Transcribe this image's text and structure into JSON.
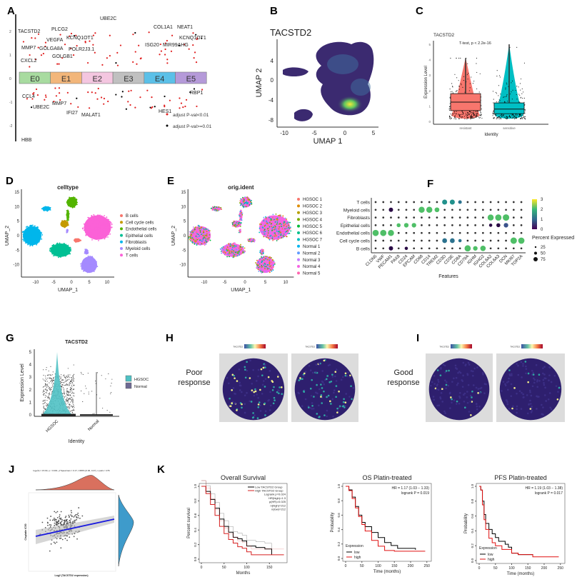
{
  "panel_labels": [
    "A",
    "B",
    "C",
    "D",
    "E",
    "F",
    "G",
    "H",
    "I",
    "J",
    "K"
  ],
  "chart_data": [
    {
      "id": "A",
      "type": "scatter",
      "clusters": [
        "E0",
        "E1",
        "E2",
        "E3",
        "E4",
        "E5"
      ],
      "cluster_colors": [
        "#a8dba0",
        "#f2b67a",
        "#f4c6e0",
        "#c0c0c0",
        "#5bc0e8",
        "#b59ad9"
      ],
      "ylim": [
        -2.6,
        2.6
      ],
      "yticks": [
        "2",
        "1",
        "0",
        "-1",
        "-2"
      ],
      "labeled_genes": [
        {
          "gene": "TACSTD2",
          "cluster": "E0",
          "value": 1.8
        },
        {
          "gene": "PLCG2",
          "cluster": "E1",
          "value": 1.9
        },
        {
          "gene": "UBE2C",
          "cluster": "E2",
          "value": 2.4
        },
        {
          "gene": "COL1A1",
          "cluster": "E4",
          "value": 2.0
        },
        {
          "gene": "NEAT1",
          "cluster": "E5",
          "value": 2.0
        },
        {
          "gene": "VEGFA",
          "cluster": "E1",
          "value": 1.5
        },
        {
          "gene": "KCNQ1OT1",
          "cluster": "E2",
          "value": 1.6
        },
        {
          "gene": "KCNQ1OT1",
          "cluster": "E5",
          "value": 1.6
        },
        {
          "gene": "MMP7",
          "cluster": "E0",
          "value": 1.1
        },
        {
          "gene": "GOLGA8A",
          "cluster": "E1",
          "value": 1.2
        },
        {
          "gene": "POLR2J3.1",
          "cluster": "E2",
          "value": 1.2
        },
        {
          "gene": "ISG20",
          "cluster": "E4",
          "value": 1.4
        },
        {
          "gene": "MIR99AHG",
          "cluster": "E5",
          "value": 1.3
        },
        {
          "gene": "GOLGB1",
          "cluster": "E1",
          "value": 0.9
        },
        {
          "gene": "CXCL2",
          "cluster": "E0",
          "value": 0.7
        },
        {
          "gene": "CCL4",
          "cluster": "E0",
          "value": -0.8
        },
        {
          "gene": "UBE2C",
          "cluster": "E0",
          "value": -1.1
        },
        {
          "gene": "MMP7",
          "cluster": "E1",
          "value": -1.1
        },
        {
          "gene": "IFI27",
          "cluster": "E1",
          "value": -1.4
        },
        {
          "gene": "MALAT1",
          "cluster": "E2",
          "value": -1.4
        },
        {
          "gene": "HES1",
          "cluster": "E4",
          "value": -1.5
        },
        {
          "gene": "RBP1",
          "cluster": "E5",
          "value": -0.7
        },
        {
          "gene": "HBB",
          "cluster": "E0",
          "value": -2.5
        }
      ],
      "legend": [
        {
          "label": "adjust P-val<0.01",
          "color": "#e02020"
        },
        {
          "label": "adjust P-val>=0.01",
          "color": "#000000"
        }
      ]
    },
    {
      "id": "B",
      "type": "heatmap",
      "title": "TACSTD2",
      "xlabel": "UMAP 1",
      "ylabel": "UMAP 2",
      "xticks": [
        "-10",
        "-5",
        "0",
        "5"
      ],
      "yticks": [
        "4",
        "0",
        "-4",
        "-8"
      ]
    },
    {
      "id": "C",
      "type": "box",
      "title": "TACSTD2",
      "annotation": "T-test, p < 2.2e-16",
      "xlabel": "Identity",
      "ylabel": "Expression Level",
      "categories": [
        "resistant",
        "sensitive"
      ],
      "colors": [
        "#f8766d",
        "#00bfc4"
      ],
      "boxes": [
        {
          "q1": 0.7,
          "median": 1.25,
          "q3": 1.8,
          "max": 4.1
        },
        {
          "q1": 0.5,
          "median": 0.8,
          "q3": 1.2,
          "max": 5.0
        }
      ],
      "ylim": [
        0,
        5
      ],
      "yticks": [
        "0",
        "1",
        "2",
        "3",
        "4",
        "5"
      ]
    },
    {
      "id": "D",
      "type": "scatter",
      "title": "celltype",
      "xlabel": "UMAP_1",
      "ylabel": "UMAP_2",
      "xticks": [
        "-10",
        "-5",
        "0",
        "5",
        "10"
      ],
      "yticks": [
        "15",
        "10",
        "5",
        "0",
        "-5",
        "-10"
      ],
      "legend": [
        {
          "label": "B cells",
          "color": "#f8766d"
        },
        {
          "label": "Cell cycle cells",
          "color": "#c49a00"
        },
        {
          "label": "Endothelial cells",
          "color": "#53b400"
        },
        {
          "label": "Epithelial cells",
          "color": "#00c094"
        },
        {
          "label": "Fibroblasts",
          "color": "#00b6eb"
        },
        {
          "label": "Myeloid cells",
          "color": "#a58aff"
        },
        {
          "label": "T cells",
          "color": "#fb61d7"
        }
      ]
    },
    {
      "id": "E",
      "type": "scatter",
      "title": "orig.ident",
      "xlabel": "UMAP_1",
      "ylabel": "UMAP_2",
      "xticks": [
        "-10",
        "-5",
        "0",
        "5",
        "10"
      ],
      "yticks": [
        "15",
        "10",
        "5",
        "0",
        "-5",
        "-10"
      ],
      "legend": [
        {
          "label": "HGSOC 1",
          "color": "#f8766d"
        },
        {
          "label": "HGSOC 2",
          "color": "#de8c00"
        },
        {
          "label": "HGSOC 3",
          "color": "#b79f00"
        },
        {
          "label": "HGSOC 4",
          "color": "#7cae00"
        },
        {
          "label": "HGSOC 5",
          "color": "#00ba38"
        },
        {
          "label": "HGSOC 6",
          "color": "#00c08b"
        },
        {
          "label": "HGSOC 7",
          "color": "#00bfc4"
        },
        {
          "label": "Normal 1",
          "color": "#00b4f0"
        },
        {
          "label": "Normal 2",
          "color": "#619cff"
        },
        {
          "label": "Normal 3",
          "color": "#c77cff"
        },
        {
          "label": "Normal 4",
          "color": "#f564e3"
        },
        {
          "label": "Normal 5",
          "color": "#ff64b0"
        }
      ]
    },
    {
      "id": "F",
      "type": "dot",
      "rows": [
        "T cells",
        "Myeloid cells",
        "Fibroblasts",
        "Epithelial cells",
        "Endothelial cells",
        "Cell cycle cells",
        "B cells"
      ],
      "features": [
        "CLDN5",
        "VWF",
        "PECAM1",
        "PAX8",
        "CD24",
        "EPCAM",
        "CD68",
        "CD14",
        "TREM2",
        "CD3D",
        "CD3E",
        "CD8A",
        "CD79A",
        "IGHM",
        "IGHG2",
        "COL6A2",
        "COL6A3",
        "DCN",
        "MKI67",
        "TOP2A"
      ],
      "xlabel": "Features",
      "default": {
        "avg_exp": 0,
        "pct": 3
      },
      "highlights": [
        {
          "row": "Endothelial cells",
          "feature": "CLDN5",
          "avg_exp": 2,
          "pct": 75
        },
        {
          "row": "Endothelial cells",
          "feature": "VWF",
          "avg_exp": 2,
          "pct": 75
        },
        {
          "row": "Endothelial cells",
          "feature": "PECAM1",
          "avg_exp": 2,
          "pct": 70
        },
        {
          "row": "Epithelial cells",
          "feature": "PAX8",
          "avg_exp": 2,
          "pct": 25
        },
        {
          "row": "Epithelial cells",
          "feature": "CD24",
          "avg_exp": 2,
          "pct": 35
        },
        {
          "row": "Epithelial cells",
          "feature": "EPCAM",
          "avg_exp": 2,
          "pct": 35
        },
        {
          "row": "Myeloid cells",
          "feature": "PECAM1",
          "avg_exp": 0,
          "pct": 30
        },
        {
          "row": "Myeloid cells",
          "feature": "CD68",
          "avg_exp": 2,
          "pct": 70
        },
        {
          "row": "Myeloid cells",
          "feature": "CD14",
          "avg_exp": 2,
          "pct": 70
        },
        {
          "row": "Myeloid cells",
          "feature": "TREM2",
          "avg_exp": 2,
          "pct": 40
        },
        {
          "row": "T cells",
          "feature": "CD3D",
          "avg_exp": 1.5,
          "pct": 45
        },
        {
          "row": "T cells",
          "feature": "CD3E",
          "avg_exp": 1.5,
          "pct": 45
        },
        {
          "row": "T cells",
          "feature": "CD8A",
          "avg_exp": 1.2,
          "pct": 20
        },
        {
          "row": "Fibroblasts",
          "feature": "COL6A2",
          "avg_exp": 2,
          "pct": 70
        },
        {
          "row": "Fibroblasts",
          "feature": "COL6A3",
          "avg_exp": 2,
          "pct": 75
        },
        {
          "row": "Fibroblasts",
          "feature": "DCN",
          "avg_exp": 2,
          "pct": 80
        },
        {
          "row": "Epithelial cells",
          "feature": "COL6A2",
          "avg_exp": 0,
          "pct": 15
        },
        {
          "row": "Epithelial cells",
          "feature": "COL6A3",
          "avg_exp": 0.2,
          "pct": 25
        },
        {
          "row": "Epithelial cells",
          "feature": "DCN",
          "avg_exp": 0.4,
          "pct": 35
        },
        {
          "row": "Cell cycle cells",
          "feature": "CD3D",
          "avg_exp": 1,
          "pct": 40
        },
        {
          "row": "Cell cycle cells",
          "feature": "CD3E",
          "avg_exp": 1,
          "pct": 40
        },
        {
          "row": "Cell cycle cells",
          "feature": "CD8A",
          "avg_exp": 1,
          "pct": 15
        },
        {
          "row": "Cell cycle cells",
          "feature": "MKI67",
          "avg_exp": 2,
          "pct": 80
        },
        {
          "row": "Cell cycle cells",
          "feature": "TOP2A",
          "avg_exp": 2,
          "pct": 75
        },
        {
          "row": "B cells",
          "feature": "PECAM1",
          "avg_exp": 0,
          "pct": 30
        },
        {
          "row": "B cells",
          "feature": "CD24",
          "avg_exp": 0,
          "pct": 15
        },
        {
          "row": "B cells",
          "feature": "CD79A",
          "avg_exp": 2,
          "pct": 75
        },
        {
          "row": "B cells",
          "feature": "IGHM",
          "avg_exp": 2,
          "pct": 35
        },
        {
          "row": "B cells",
          "feature": "IGHG2",
          "avg_exp": 2,
          "pct": 55
        }
      ],
      "colorbar_ticks": [
        "3",
        "2",
        "1",
        "0"
      ],
      "size_legend_title": "Percent Expressed",
      "size_ticks": [
        "25",
        "50",
        "75"
      ]
    },
    {
      "id": "G",
      "type": "violin",
      "title": "TACSTD2",
      "categories": [
        "HGSOC",
        "Normal"
      ],
      "xlabel": "Identity",
      "ylabel": "Expression Level",
      "yticks": [
        "0",
        "1",
        "2",
        "3",
        "4",
        "5"
      ],
      "legend": [
        {
          "label": "HGSOC",
          "color": "#4fc1c4"
        },
        {
          "label": "Normal",
          "color": "#6e6a93"
        }
      ]
    },
    {
      "id": "H",
      "label_line1": "Poor",
      "label_line2": "response",
      "colorbar_label": "TACSTD2"
    },
    {
      "id": "I",
      "label_line1": "Good",
      "label_line2": "response",
      "colorbar_label": "TACSTD2"
    },
    {
      "id": "J",
      "type": "scatter",
      "stats": "logₑ(S) = 15.90, p < 0.001, ρ̂ Spearman = 0.17, CI95% [0.06, 0.27], n pairs = 276",
      "xlabel": "Log2 (TACSTD2 expression)",
      "ylabel": "Cisplatin IC50",
      "line_color": "#1a1adf",
      "top_density_color": "#d9705e",
      "right_density_color": "#3e9bcb"
    },
    {
      "id": "K1",
      "type": "line",
      "title": "Overall Survival",
      "xlabel": "Months",
      "ylabel": "Percent survival",
      "xticks": [
        0,
        50,
        100,
        150
      ],
      "yticks": [
        "0.0",
        "0.2",
        "0.4",
        "0.6",
        "0.8",
        "1.0"
      ],
      "xlim": [
        0,
        185
      ],
      "legend_lines": [
        "Low TACSTD2 Group",
        "High TACSTD2 Group"
      ],
      "stats_lines": [
        "Logrank p=0.024",
        "HR(high)=1.3",
        "p(HR)=0.025",
        "n(high)=212",
        "n(low)=212"
      ],
      "series": [
        {
          "name": "Low TACSTD2 Group",
          "color": "#000000",
          "x": [
            0,
            10,
            20,
            30,
            40,
            50,
            60,
            70,
            80,
            90,
            100,
            120,
            140,
            155
          ],
          "y": [
            1,
            0.93,
            0.82,
            0.7,
            0.55,
            0.45,
            0.37,
            0.3,
            0.28,
            0.25,
            0.18,
            0.16,
            0.14,
            0.06
          ]
        },
        {
          "name": "High TACSTD2 Group",
          "color": "#d62020",
          "x": [
            0,
            10,
            20,
            30,
            40,
            50,
            60,
            70,
            80,
            90,
            100,
            110,
            120,
            150,
            182
          ],
          "y": [
            1,
            0.9,
            0.75,
            0.6,
            0.45,
            0.35,
            0.27,
            0.22,
            0.17,
            0.15,
            0.1,
            0.06,
            0.06,
            0.06,
            0.06
          ]
        }
      ]
    },
    {
      "id": "K2",
      "type": "line",
      "title": "OS Platin-treated",
      "xlabel": "Time (months)",
      "ylabel": "Probability",
      "xticks": [
        0,
        50,
        100,
        150,
        200,
        250
      ],
      "yticks": [
        "0.0",
        "0.2",
        "0.4",
        "0.6",
        "0.8",
        "1.0"
      ],
      "xlim": [
        0,
        255
      ],
      "stats_lines": [
        "HR = 1.17 (1.03 − 1.33)",
        "logrank P = 0.019"
      ],
      "legend_title": "Expression",
      "series": [
        {
          "name": "low",
          "color": "#000000",
          "x": [
            0,
            10,
            20,
            30,
            40,
            50,
            60,
            80,
            100,
            120,
            140,
            160,
            215
          ],
          "y": [
            1,
            0.95,
            0.85,
            0.72,
            0.6,
            0.5,
            0.44,
            0.36,
            0.29,
            0.22,
            0.18,
            0.14,
            0.12
          ]
        },
        {
          "name": "high",
          "color": "#e01010",
          "x": [
            0,
            10,
            20,
            30,
            40,
            50,
            60,
            80,
            100,
            120,
            150,
            245
          ],
          "y": [
            1,
            0.94,
            0.83,
            0.7,
            0.58,
            0.47,
            0.38,
            0.25,
            0.17,
            0.11,
            0.1,
            0.1
          ]
        }
      ]
    },
    {
      "id": "K3",
      "type": "line",
      "title": "PFS Platin-treated",
      "xlabel": "Time (months)",
      "ylabel": "Probability",
      "xticks": [
        0,
        50,
        100,
        150,
        200,
        250
      ],
      "yticks": [
        "0.0",
        "0.2",
        "0.4",
        "0.6",
        "0.8",
        "1.0"
      ],
      "xlim": [
        0,
        255
      ],
      "stats_lines": [
        "HR = 1.19 (1.03 − 1.38)",
        "logrank P = 0.017"
      ],
      "legend_title": "Expression",
      "series": [
        {
          "name": "low",
          "color": "#000000",
          "x": [
            0,
            5,
            10,
            15,
            20,
            30,
            40,
            50,
            60,
            80,
            90,
            100,
            120,
            165
          ],
          "y": [
            1,
            0.95,
            0.8,
            0.62,
            0.5,
            0.42,
            0.36,
            0.31,
            0.26,
            0.22,
            0.18,
            0.1,
            0.08,
            0.07
          ]
        },
        {
          "name": "high",
          "color": "#e01010",
          "x": [
            0,
            5,
            10,
            15,
            20,
            30,
            40,
            50,
            70,
            100,
            120,
            165,
            245
          ],
          "y": [
            1,
            0.95,
            0.75,
            0.55,
            0.42,
            0.3,
            0.24,
            0.2,
            0.15,
            0.1,
            0.08,
            0.05,
            0.05
          ]
        }
      ]
    }
  ]
}
